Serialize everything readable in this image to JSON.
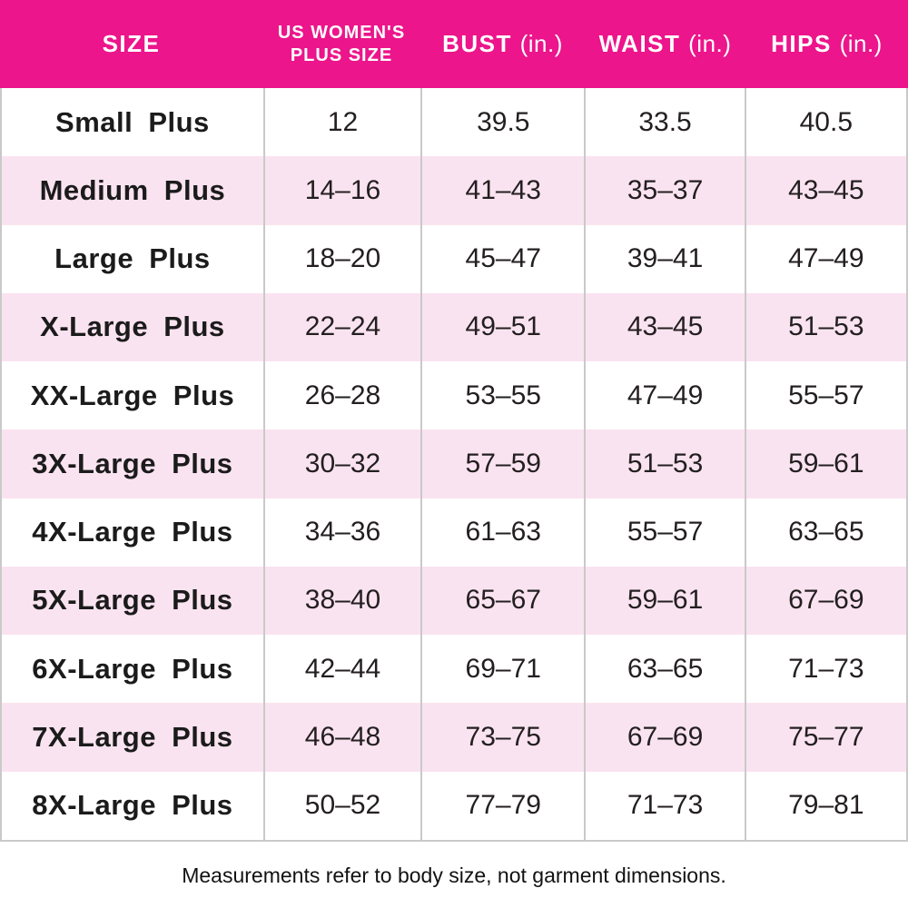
{
  "colors": {
    "header_bg": "#EC158B",
    "row_alt_bg": "#FAE3F0",
    "row_bg": "#FFFFFF",
    "header_text": "#FFFFFF",
    "body_text": "#231F20",
    "divider": "#C9C9C9"
  },
  "table": {
    "headers": {
      "size": "SIZE",
      "us_line1": "US WOMEN'S",
      "us_line2": "PLUS SIZE",
      "bust": "BUST",
      "bust_unit": "(in.)",
      "waist": "WAIST",
      "waist_unit": "(in.)",
      "hips": "HIPS",
      "hips_unit": "(in.)"
    },
    "rows": [
      {
        "size": "Small Plus",
        "us": "12",
        "bust": "39.5",
        "waist": "33.5",
        "hips": "40.5"
      },
      {
        "size": "Medium Plus",
        "us": "14–16",
        "bust": "41–43",
        "waist": "35–37",
        "hips": "43–45"
      },
      {
        "size": "Large Plus",
        "us": "18–20",
        "bust": "45–47",
        "waist": "39–41",
        "hips": "47–49"
      },
      {
        "size": "X-Large Plus",
        "us": "22–24",
        "bust": "49–51",
        "waist": "43–45",
        "hips": "51–53"
      },
      {
        "size": "XX-Large Plus",
        "us": "26–28",
        "bust": "53–55",
        "waist": "47–49",
        "hips": "55–57"
      },
      {
        "size": "3X-Large Plus",
        "us": "30–32",
        "bust": "57–59",
        "waist": "51–53",
        "hips": "59–61"
      },
      {
        "size": "4X-Large Plus",
        "us": "34–36",
        "bust": "61–63",
        "waist": "55–57",
        "hips": "63–65"
      },
      {
        "size": "5X-Large Plus",
        "us": "38–40",
        "bust": "65–67",
        "waist": "59–61",
        "hips": "67–69"
      },
      {
        "size": "6X-Large Plus",
        "us": "42–44",
        "bust": "69–71",
        "waist": "63–65",
        "hips": "71–73"
      },
      {
        "size": "7X-Large Plus",
        "us": "46–48",
        "bust": "73–75",
        "waist": "67–69",
        "hips": "75–77"
      },
      {
        "size": "8X-Large Plus",
        "us": "50–52",
        "bust": "77–79",
        "waist": "71–73",
        "hips": "79–81"
      }
    ]
  },
  "footer": {
    "note": "Measurements refer to body size, not garment dimensions."
  },
  "chart_data": {
    "type": "table",
    "columns": [
      "SIZE",
      "US WOMEN'S PLUS SIZE",
      "BUST (in.)",
      "WAIST (in.)",
      "HIPS (in.)"
    ],
    "rows": [
      [
        "Small Plus",
        "12",
        "39.5",
        "33.5",
        "40.5"
      ],
      [
        "Medium Plus",
        "14–16",
        "41–43",
        "35–37",
        "43–45"
      ],
      [
        "Large Plus",
        "18–20",
        "45–47",
        "39–41",
        "47–49"
      ],
      [
        "X-Large Plus",
        "22–24",
        "49–51",
        "43–45",
        "51–53"
      ],
      [
        "XX-Large Plus",
        "26–28",
        "53–55",
        "47–49",
        "55–57"
      ],
      [
        "3X-Large Plus",
        "30–32",
        "57–59",
        "51–53",
        "59–61"
      ],
      [
        "4X-Large Plus",
        "34–36",
        "61–63",
        "55–57",
        "63–65"
      ],
      [
        "5X-Large Plus",
        "38–40",
        "65–67",
        "59–61",
        "67–69"
      ],
      [
        "6X-Large Plus",
        "42–44",
        "69–71",
        "63–65",
        "71–73"
      ],
      [
        "7X-Large Plus",
        "46–48",
        "73–75",
        "67–69",
        "75–77"
      ],
      [
        "8X-Large Plus",
        "50–52",
        "77–79",
        "71–73",
        "79–81"
      ]
    ],
    "footnote": "Measurements refer to body size, not garment dimensions.",
    "layout": {
      "header_style": "magenta-band",
      "row_striping": "even-rows-light-pink",
      "grid": "vertical-dividers-only"
    }
  }
}
